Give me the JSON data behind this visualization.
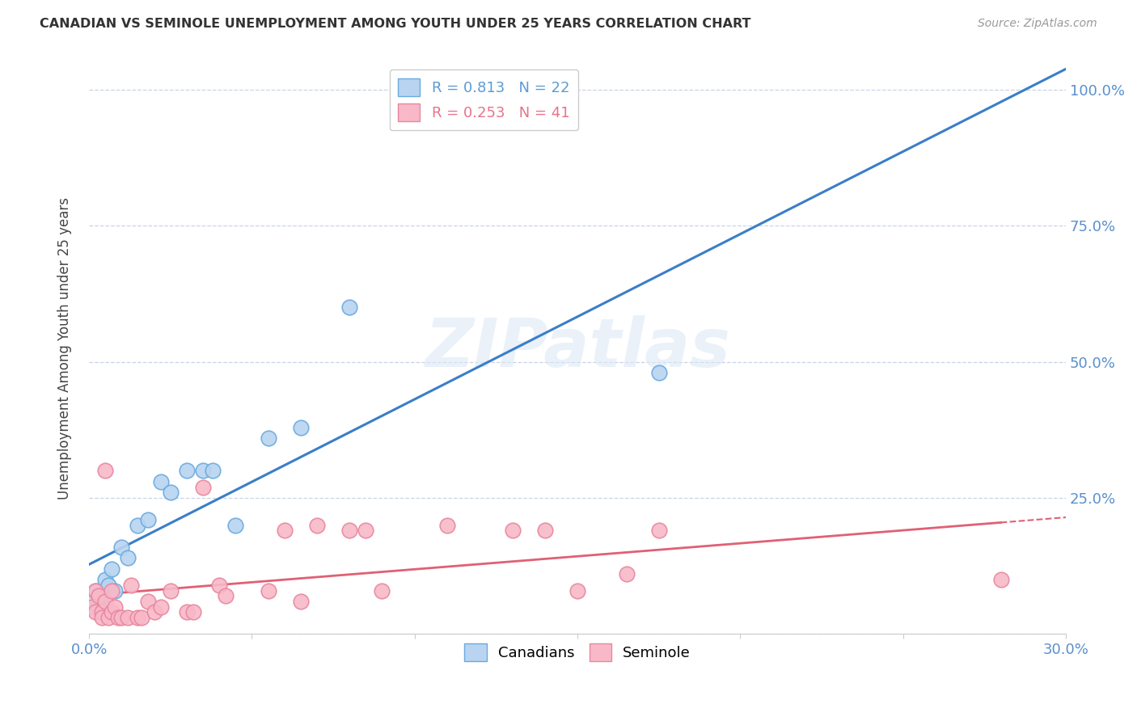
{
  "title": "CANADIAN VS SEMINOLE UNEMPLOYMENT AMONG YOUTH UNDER 25 YEARS CORRELATION CHART",
  "source": "Source: ZipAtlas.com",
  "ylabel": "Unemployment Among Youth under 25 years",
  "xlim": [
    0.0,
    0.3
  ],
  "ylim": [
    0.0,
    1.05
  ],
  "x_ticks": [
    0.0,
    0.05,
    0.1,
    0.15,
    0.2,
    0.25,
    0.3
  ],
  "y_ticks": [
    0.0,
    0.25,
    0.5,
    0.75,
    1.0
  ],
  "y_tick_labels": [
    "",
    "25.0%",
    "50.0%",
    "75.0%",
    "100.0%"
  ],
  "background_color": "#ffffff",
  "watermark_text": "ZIPatlas",
  "legend_entries": [
    {
      "label": "R = 0.813   N = 22",
      "color": "#5b9bd5"
    },
    {
      "label": "R = 0.253   N = 41",
      "color": "#e8728a"
    }
  ],
  "bottom_legend": [
    "Canadians",
    "Seminole"
  ],
  "canadian_scatter": [
    [
      0.001,
      0.06
    ],
    [
      0.002,
      0.08
    ],
    [
      0.003,
      0.05
    ],
    [
      0.004,
      0.07
    ],
    [
      0.005,
      0.1
    ],
    [
      0.006,
      0.09
    ],
    [
      0.007,
      0.12
    ],
    [
      0.008,
      0.08
    ],
    [
      0.01,
      0.16
    ],
    [
      0.012,
      0.14
    ],
    [
      0.015,
      0.2
    ],
    [
      0.018,
      0.21
    ],
    [
      0.022,
      0.28
    ],
    [
      0.025,
      0.26
    ],
    [
      0.03,
      0.3
    ],
    [
      0.035,
      0.3
    ],
    [
      0.038,
      0.3
    ],
    [
      0.045,
      0.2
    ],
    [
      0.055,
      0.36
    ],
    [
      0.065,
      0.38
    ],
    [
      0.08,
      0.6
    ],
    [
      0.175,
      0.48
    ]
  ],
  "seminole_scatter": [
    [
      0.001,
      0.05
    ],
    [
      0.002,
      0.08
    ],
    [
      0.002,
      0.04
    ],
    [
      0.003,
      0.07
    ],
    [
      0.004,
      0.04
    ],
    [
      0.004,
      0.03
    ],
    [
      0.005,
      0.3
    ],
    [
      0.005,
      0.06
    ],
    [
      0.006,
      0.03
    ],
    [
      0.007,
      0.08
    ],
    [
      0.007,
      0.04
    ],
    [
      0.008,
      0.05
    ],
    [
      0.009,
      0.03
    ],
    [
      0.01,
      0.03
    ],
    [
      0.012,
      0.03
    ],
    [
      0.013,
      0.09
    ],
    [
      0.015,
      0.03
    ],
    [
      0.016,
      0.03
    ],
    [
      0.018,
      0.06
    ],
    [
      0.02,
      0.04
    ],
    [
      0.022,
      0.05
    ],
    [
      0.025,
      0.08
    ],
    [
      0.03,
      0.04
    ],
    [
      0.032,
      0.04
    ],
    [
      0.035,
      0.27
    ],
    [
      0.04,
      0.09
    ],
    [
      0.042,
      0.07
    ],
    [
      0.055,
      0.08
    ],
    [
      0.06,
      0.19
    ],
    [
      0.065,
      0.06
    ],
    [
      0.07,
      0.2
    ],
    [
      0.08,
      0.19
    ],
    [
      0.085,
      0.19
    ],
    [
      0.09,
      0.08
    ],
    [
      0.11,
      0.2
    ],
    [
      0.13,
      0.19
    ],
    [
      0.14,
      0.19
    ],
    [
      0.15,
      0.08
    ],
    [
      0.165,
      0.11
    ],
    [
      0.175,
      0.19
    ],
    [
      0.28,
      0.1
    ]
  ],
  "canadian_line_color": "#3a7ec8",
  "seminole_line_solid_color": "#e06075",
  "seminole_line_dash_color": "#e06075",
  "canadian_scatter_facecolor": "#b8d4f0",
  "canadian_scatter_edgecolor": "#6aaae0",
  "seminole_scatter_facecolor": "#f8b8c8",
  "seminole_scatter_edgecolor": "#e888a0",
  "grid_color": "#c8d4e8",
  "tick_color": "#5a90cc",
  "title_color": "#333333",
  "ylabel_color": "#444444"
}
